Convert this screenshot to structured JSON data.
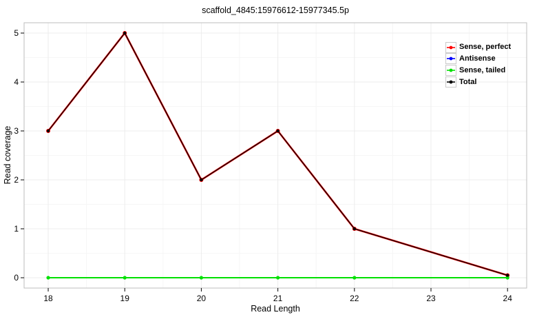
{
  "title": "scaffold_4845:15976612-15977345.5p",
  "chart_data": {
    "type": "line",
    "title": "scaffold_4845:15976612-15977345.5p",
    "xlabel": "Read Length",
    "ylabel": "Read coverage",
    "x": [
      18,
      19,
      20,
      21,
      22,
      24
    ],
    "x_ticks": [
      "18",
      "19",
      "20",
      "21",
      "22",
      "23",
      "24"
    ],
    "x_tick_values": [
      18,
      19,
      20,
      21,
      22,
      23,
      24
    ],
    "y_ticks": [
      "0",
      "1",
      "2",
      "3",
      "4",
      "5"
    ],
    "y_tick_values": [
      0,
      1,
      2,
      3,
      4,
      5
    ],
    "xlim": [
      17.685,
      24.25
    ],
    "ylim": [
      -0.211,
      5.211
    ],
    "grid": "major+minor",
    "legend_position": "top-right-inside",
    "series": [
      {
        "name": "Sense, perfect",
        "color": "#ff0000",
        "values": [
          3,
          5,
          2,
          3,
          1,
          0.05
        ]
      },
      {
        "name": "Antisense",
        "color": "#0000ff",
        "values": [
          0,
          0,
          0,
          0,
          0,
          0
        ]
      },
      {
        "name": "Sense, tailed",
        "color": "#00e000",
        "values": [
          0,
          0,
          0,
          0,
          0,
          0
        ]
      },
      {
        "name": "Total",
        "color": "#000000",
        "values": [
          3,
          5,
          2,
          3,
          1,
          0.05
        ]
      }
    ]
  },
  "style_colors": {
    "panel_border": "#bdbdbd",
    "grid_major": "#ececec",
    "grid_minor": "#f6f6f6",
    "tick_mark": "#000000",
    "text": "#000000"
  }
}
